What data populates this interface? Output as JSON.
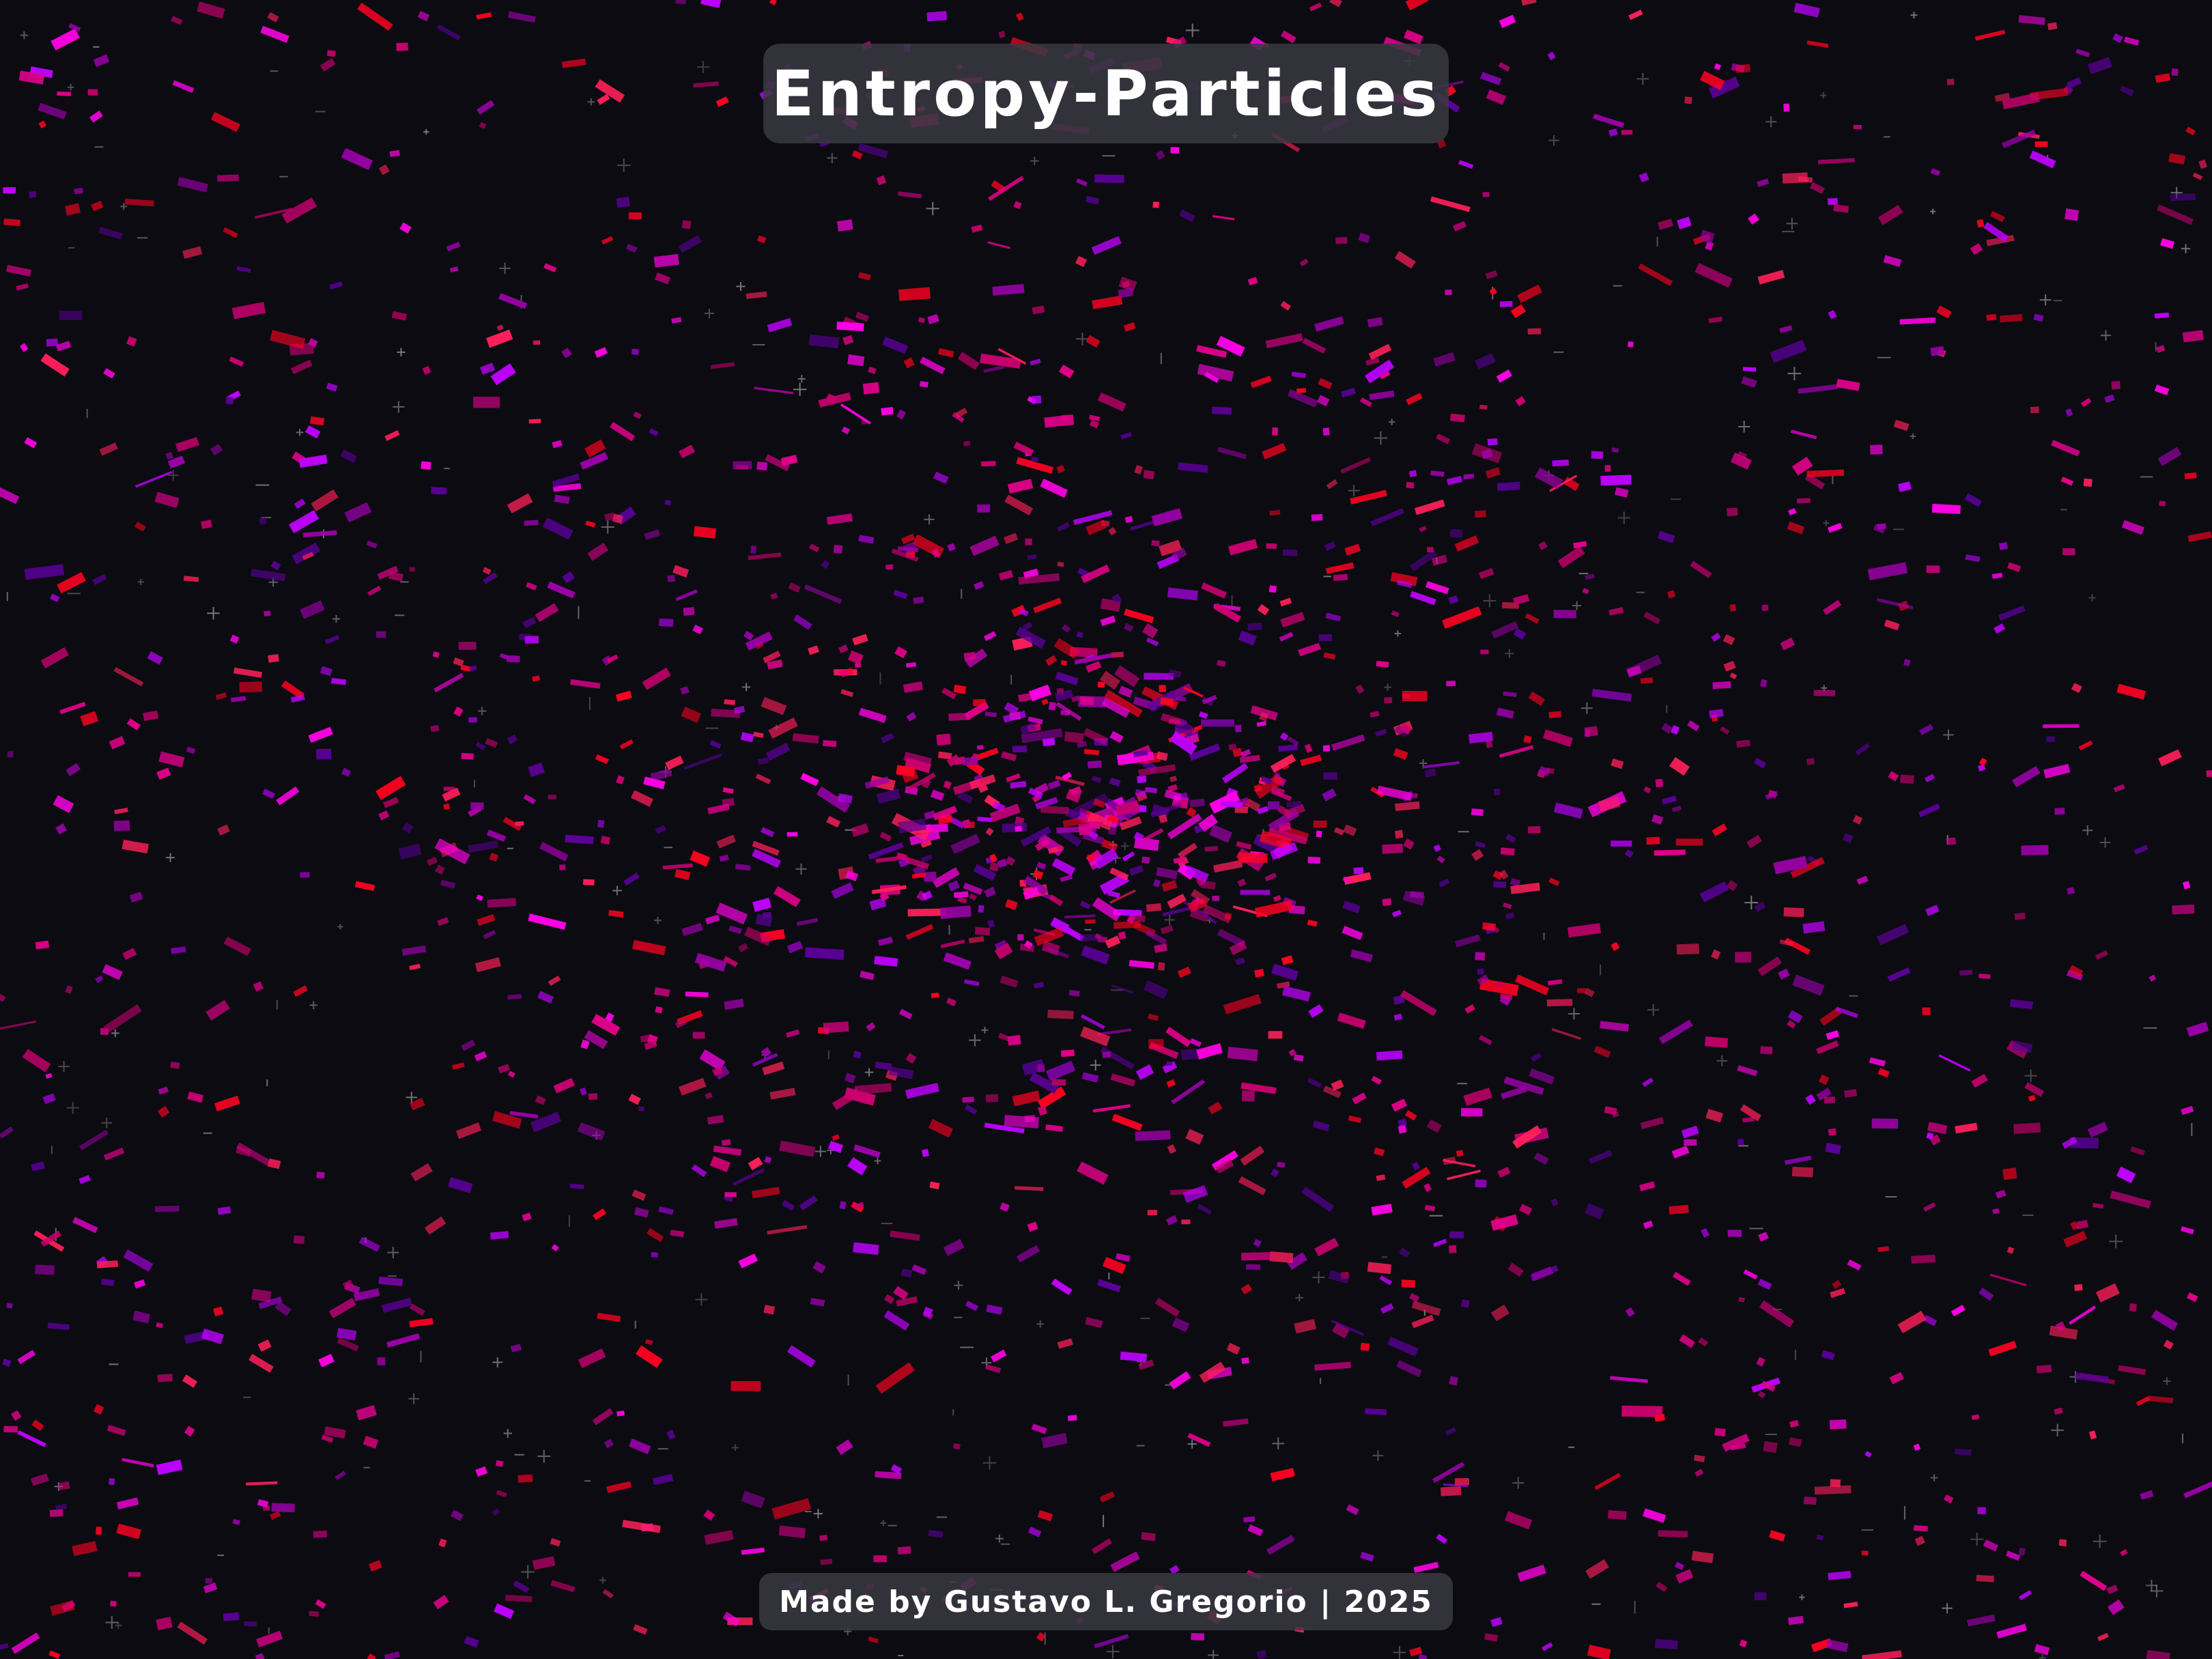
{
  "title": "Entropy-Particles",
  "footer": "Made by Gustavo L. Gregorio | 2025",
  "colors": {
    "background": "#0b0b11",
    "panel": "#3a3a42",
    "text": "#ffffff",
    "particle_palette": [
      "#ff00e6",
      "#e0008a",
      "#ff0022",
      "#c8006e",
      "#9a00a8",
      "#5a0097",
      "#c000ff",
      "#ff1f5a"
    ],
    "star": "#9a9aa2"
  }
}
